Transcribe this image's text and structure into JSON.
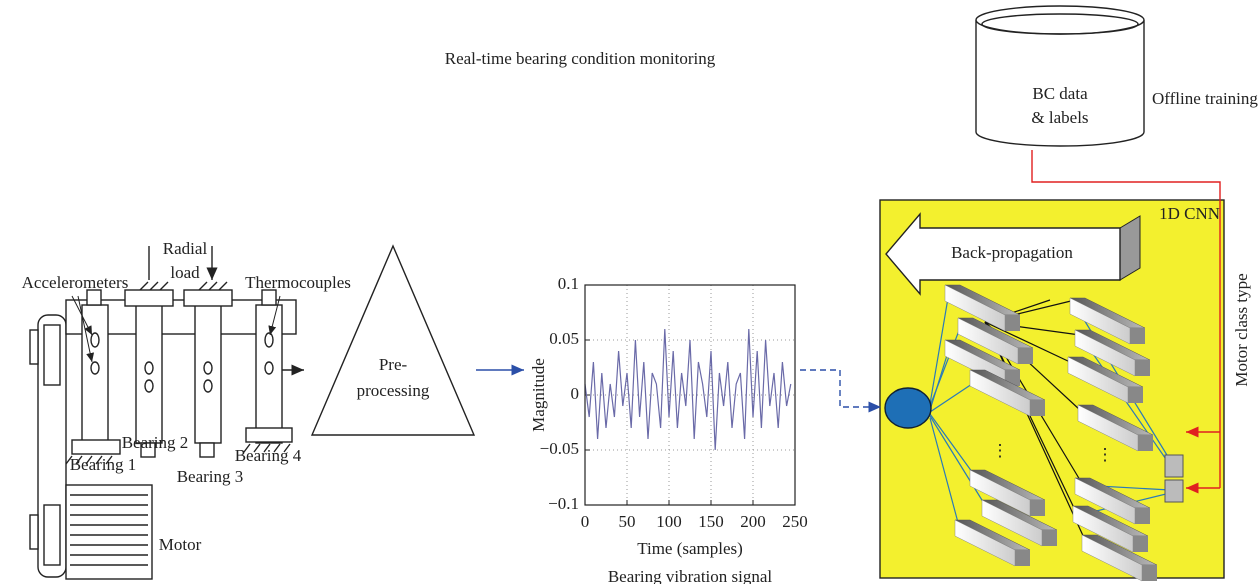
{
  "title": "Real-time bearing condition monitoring",
  "database": {
    "line1": "BC data",
    "line2": "& labels",
    "caption": "Offline training"
  },
  "cnn": {
    "label": "1D CNN",
    "backprop": "Back-propagation",
    "output_label": "Motor class type"
  },
  "preprocessing": {
    "line1": "Pre-",
    "line2": "processing"
  },
  "rig": {
    "radial1": "Radial",
    "radial2": "load",
    "accelerometers": "Accelerometers",
    "thermocouples": "Thermocouples",
    "bearing1": "Bearing 1",
    "bearing2": "Bearing 2",
    "bearing3": "Bearing 3",
    "bearing4": "Bearing 4",
    "motor": "Motor"
  },
  "signal_plot": {
    "type": "line",
    "ylabel": "Magnitude",
    "xlabel": "Time (samples)",
    "caption": "Bearing vibration signal",
    "color": "#6a6aa8",
    "grid": true,
    "xlim": [
      0,
      250
    ],
    "ylim": [
      -0.1,
      0.1
    ],
    "xticks": [
      0,
      50,
      100,
      150,
      200,
      250
    ],
    "yticks": [
      {
        "value": -0.1,
        "label": "−0.1"
      },
      {
        "value": -0.05,
        "label": "−0.05"
      },
      0,
      0.05,
      0.1
    ],
    "x": [
      0,
      5,
      10,
      15,
      20,
      25,
      30,
      35,
      40,
      45,
      50,
      55,
      60,
      65,
      70,
      75,
      80,
      85,
      90,
      95,
      100,
      105,
      110,
      115,
      120,
      125,
      130,
      135,
      140,
      145,
      150,
      155,
      160,
      165,
      170,
      175,
      180,
      185,
      190,
      195,
      200,
      205,
      210,
      215,
      220,
      225,
      230,
      235,
      240,
      245
    ],
    "values": [
      0.01,
      -0.02,
      0.03,
      -0.04,
      0.02,
      -0.03,
      0.01,
      -0.02,
      0.04,
      -0.01,
      0.02,
      -0.03,
      0.05,
      -0.02,
      0.03,
      -0.04,
      0.02,
      0.01,
      -0.03,
      0.06,
      -0.02,
      0.04,
      -0.03,
      0.02,
      -0.01,
      0.05,
      -0.04,
      0.03,
      0.01,
      -0.02,
      0.04,
      -0.05,
      0.02,
      -0.01,
      0.03,
      -0.03,
      0.01,
      0.02,
      -0.04,
      0.06,
      -0.02,
      0.04,
      -0.03,
      0.05,
      -0.01,
      0.02,
      -0.03,
      0.03,
      -0.01,
      0.01
    ]
  }
}
